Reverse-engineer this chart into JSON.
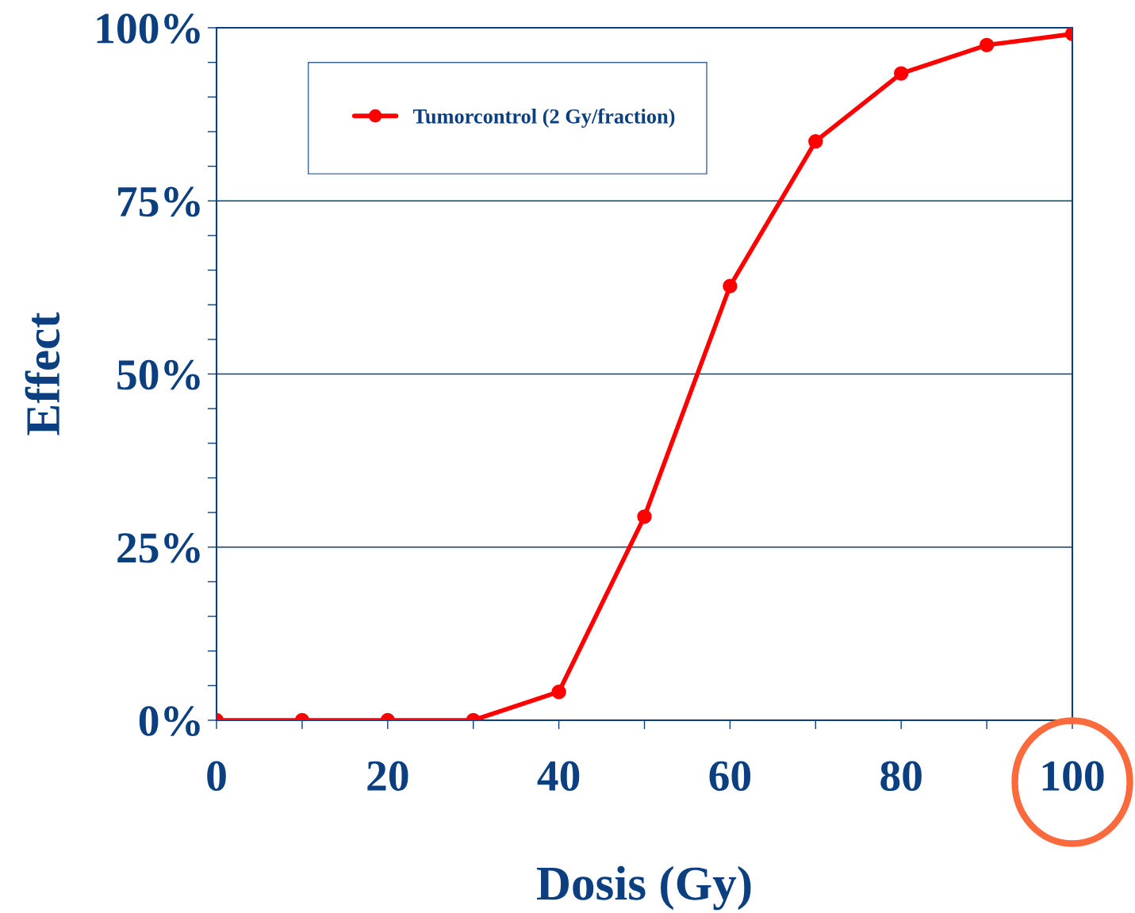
{
  "chart_data": {
    "type": "line",
    "xlabel": "Dosis (Gy)",
    "ylabel": "Effect",
    "x": [
      0,
      10,
      20,
      30,
      40,
      50,
      60,
      70,
      80,
      90,
      100
    ],
    "series": [
      {
        "name": "Tumorcontrol (2 Gy/fraction)",
        "color": "#ff0000",
        "values": [
          0,
          0,
          0,
          0,
          4.1,
          29.4,
          62.7,
          83.6,
          93.4,
          97.5,
          99.1
        ]
      }
    ],
    "xlim": [
      0,
      100
    ],
    "ylim": [
      0,
      100
    ],
    "xticks": [
      0,
      {
        "value": 10,
        "label": null
      },
      20,
      {
        "value": 30,
        "label": null
      },
      40,
      {
        "value": 50,
        "label": null
      },
      60,
      {
        "value": 70,
        "label": null
      },
      80,
      {
        "value": 90,
        "label": null
      },
      100
    ],
    "yticks": [
      {
        "value": 0,
        "label": "0%"
      },
      {
        "value": 25,
        "label": "25%"
      },
      {
        "value": 50,
        "label": "50%"
      },
      {
        "value": 75,
        "label": "75%"
      },
      {
        "value": 100,
        "label": "100%"
      }
    ],
    "grid": "y",
    "legend": "top left",
    "marker": "circle",
    "line_style": "solid"
  }
}
